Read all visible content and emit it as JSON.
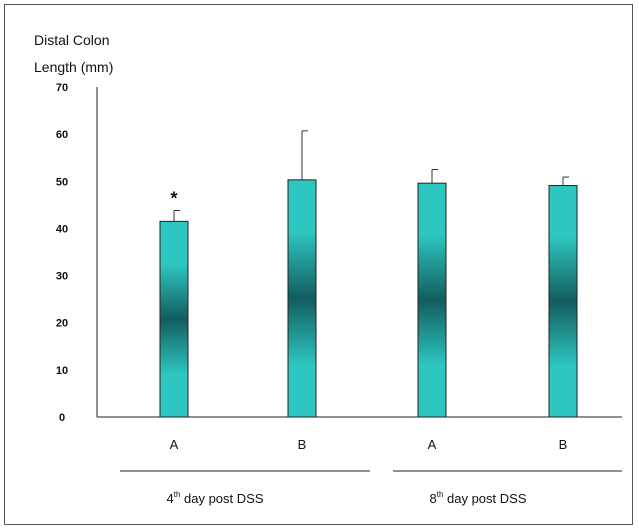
{
  "chart_data": {
    "type": "bar",
    "title": "",
    "ylabel_lines": [
      "Distal Colon",
      "Length (mm)"
    ],
    "xlabel": "",
    "ylim": [
      0,
      70
    ],
    "yticks": [
      0,
      10,
      20,
      30,
      40,
      50,
      60,
      70
    ],
    "categories": [
      "A",
      "B",
      "A",
      "B"
    ],
    "values": [
      41.5,
      50.3,
      49.6,
      49.1
    ],
    "error_upper": [
      43.8,
      60.7,
      52.5,
      50.9
    ],
    "annotations": [
      {
        "category_index": 0,
        "text": "*"
      }
    ],
    "groups": [
      {
        "prefix": "4",
        "superscript": "th",
        "suffix": " day post DSS",
        "categories": [
          0,
          1
        ]
      },
      {
        "prefix": "8",
        "superscript": "th",
        "suffix": " day post DSS",
        "categories": [
          2,
          3
        ]
      }
    ],
    "bar_gradient": {
      "outer": "#2ec6c0",
      "inner": "#135d5e"
    },
    "grid": false,
    "legend": "none"
  }
}
